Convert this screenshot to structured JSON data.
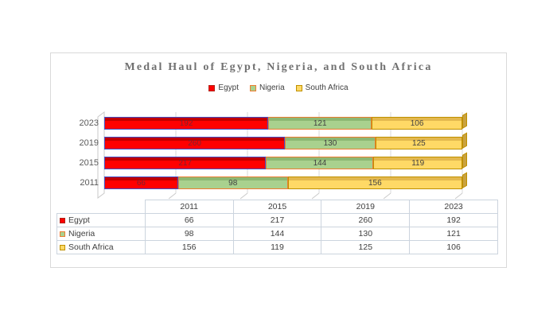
{
  "chart_data": {
    "type": "bar",
    "subtype": "3d-100-percent-stacked-horizontal",
    "title": "Medal Haul of Egypt, Nigeria, and South Africa",
    "categories": [
      "2011",
      "2015",
      "2019",
      "2023"
    ],
    "row_order_top_to_bottom": [
      "2023",
      "2019",
      "2015",
      "2011"
    ],
    "series": [
      {
        "name": "Egypt",
        "values": [
          66,
          217,
          260,
          192
        ],
        "fill": "#FF0000",
        "border": "#4450C8",
        "bevel": "#C00000",
        "cap": "#C00000",
        "swatch_border": "#B02418",
        "label_color": "#7A2230"
      },
      {
        "name": "Nigeria",
        "values": [
          98,
          144,
          130,
          121
        ],
        "fill": "#A9D18E",
        "border": "#ED7D31",
        "bevel": "#8DB873",
        "cap": "#8DB873",
        "swatch_border": "#ED7D31",
        "label_color": "#404040"
      },
      {
        "name": "South Africa",
        "values": [
          156,
          119,
          125,
          106
        ],
        "fill": "#FFD966",
        "border": "#BF9000",
        "bevel": "#E3B84E",
        "cap": "#C9A23F",
        "swatch_border": "#BF9000",
        "label_color": "#404040"
      }
    ],
    "legend_position": "top",
    "legend_labels": [
      "Egypt",
      "Nigeria",
      "South Africa"
    ],
    "gridlines": true,
    "axis": "percent-of-total",
    "gridline_interval_percent": 20
  },
  "table": {
    "columns": [
      "",
      "2011",
      "2015",
      "2019",
      "2023"
    ],
    "rows": [
      {
        "label": "Egypt",
        "values": [
          "66",
          "217",
          "260",
          "192"
        ]
      },
      {
        "label": "Nigeria",
        "values": [
          "98",
          "144",
          "130",
          "121"
        ]
      },
      {
        "label": "South Africa",
        "values": [
          "156",
          "119",
          "125",
          "106"
        ]
      }
    ]
  },
  "colors": {
    "chart_border": "#d9d9d9",
    "gridline": "#d9d9d9",
    "wall_stroke": "#c9c9c9",
    "table_border": "#ccd4de",
    "title_text": "#707070",
    "axis_text": "#595959",
    "body_text": "#404040"
  }
}
